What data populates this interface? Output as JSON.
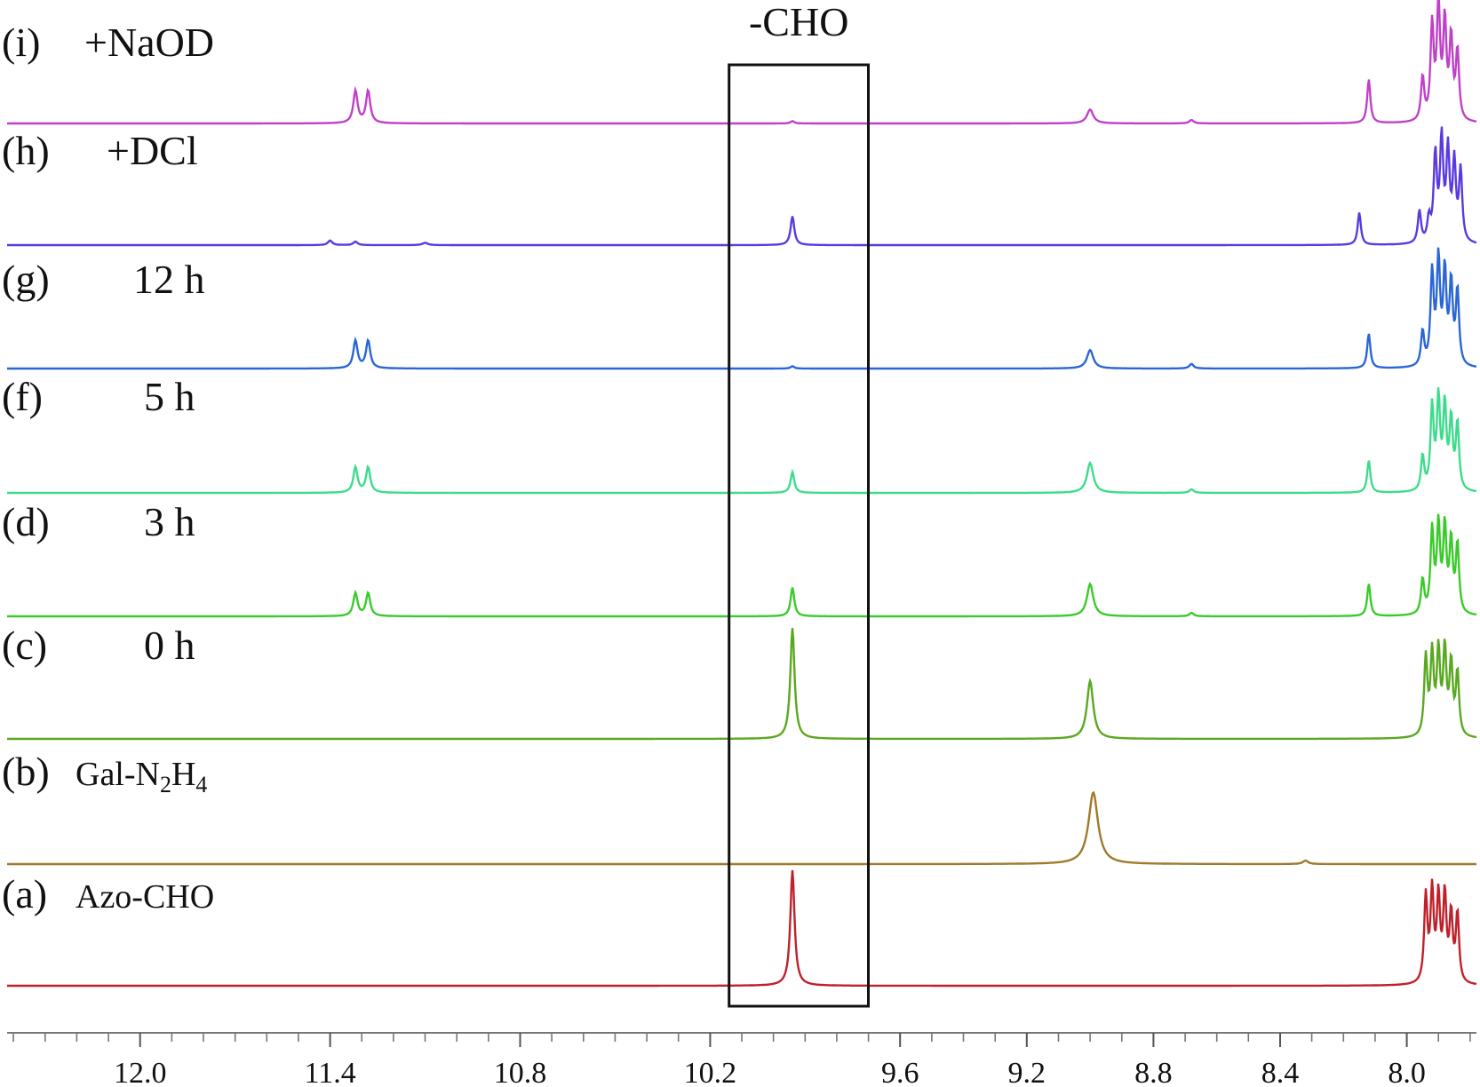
{
  "chart_data": {
    "type": "line",
    "title": "",
    "xlabel": "",
    "ylabel": "",
    "x_axis": {
      "min": 7.78,
      "max": 12.42,
      "reversed": true,
      "ticks": [
        12.0,
        11.4,
        10.8,
        10.2,
        9.6,
        9.2,
        8.8,
        8.4,
        8.0
      ],
      "tick_labels": [
        "12.0",
        "11.4",
        "10.8",
        "10.2",
        "9.6",
        "9.2",
        "8.8",
        "8.4",
        "8.0"
      ]
    },
    "highlight_box": {
      "label": "-CHO",
      "x_from": 10.14,
      "x_to": 9.7
    },
    "series": [
      {
        "id": "a",
        "letter": "(a)",
        "label": "Azo-CHO",
        "color": "#c0202a",
        "peaks": [
          {
            "ppm": 9.94,
            "height": 1.0,
            "width": 0.008
          },
          {
            "ppm": 7.94,
            "height": 0.75,
            "width": 0.006
          },
          {
            "ppm": 7.92,
            "height": 0.78,
            "width": 0.006
          },
          {
            "ppm": 7.9,
            "height": 0.73,
            "width": 0.006
          },
          {
            "ppm": 7.88,
            "height": 0.75,
            "width": 0.006
          },
          {
            "ppm": 7.86,
            "height": 0.58,
            "width": 0.006
          },
          {
            "ppm": 7.84,
            "height": 0.6,
            "width": 0.006
          }
        ]
      },
      {
        "id": "b",
        "letter": "(b)",
        "label": "Gal-N",
        "label_sub1": "2",
        "label_mid": "H",
        "label_sub2": "4",
        "color": "#a07a2a",
        "peaks": [
          {
            "ppm": 8.99,
            "height": 0.62,
            "width": 0.018
          },
          {
            "ppm": 8.32,
            "height": 0.03,
            "width": 0.01
          }
        ]
      },
      {
        "id": "c",
        "letter": "(c)",
        "label": "0 h",
        "color": "#5aa820",
        "peaks": [
          {
            "ppm": 9.94,
            "height": 0.96,
            "width": 0.008
          },
          {
            "ppm": 9.0,
            "height": 0.5,
            "width": 0.012
          },
          {
            "ppm": 7.94,
            "height": 0.68,
            "width": 0.006
          },
          {
            "ppm": 7.92,
            "height": 0.7,
            "width": 0.006
          },
          {
            "ppm": 7.9,
            "height": 0.72,
            "width": 0.006
          },
          {
            "ppm": 7.88,
            "height": 0.74,
            "width": 0.006
          },
          {
            "ppm": 7.86,
            "height": 0.62,
            "width": 0.006
          },
          {
            "ppm": 7.84,
            "height": 0.55,
            "width": 0.006
          }
        ]
      },
      {
        "id": "d",
        "letter": "(d)",
        "label": "3 h",
        "color": "#3acb2a",
        "peaks": [
          {
            "ppm": 11.32,
            "height": 0.2,
            "width": 0.008
          },
          {
            "ppm": 11.28,
            "height": 0.2,
            "width": 0.008
          },
          {
            "ppm": 9.94,
            "height": 0.25,
            "width": 0.007
          },
          {
            "ppm": 9.0,
            "height": 0.28,
            "width": 0.012
          },
          {
            "ppm": 8.68,
            "height": 0.03,
            "width": 0.008
          },
          {
            "ppm": 8.12,
            "height": 0.28,
            "width": 0.006
          },
          {
            "ppm": 7.95,
            "height": 0.3,
            "width": 0.006
          },
          {
            "ppm": 7.92,
            "height": 0.72,
            "width": 0.006
          },
          {
            "ppm": 7.9,
            "height": 0.75,
            "width": 0.006
          },
          {
            "ppm": 7.88,
            "height": 0.74,
            "width": 0.006
          },
          {
            "ppm": 7.86,
            "height": 0.62,
            "width": 0.006
          },
          {
            "ppm": 7.84,
            "height": 0.6,
            "width": 0.006
          }
        ]
      },
      {
        "id": "f",
        "letter": "(f)",
        "label": "5 h",
        "color": "#3ddc8c",
        "peaks": [
          {
            "ppm": 11.32,
            "height": 0.22,
            "width": 0.008
          },
          {
            "ppm": 11.28,
            "height": 0.22,
            "width": 0.008
          },
          {
            "ppm": 9.94,
            "height": 0.18,
            "width": 0.007
          },
          {
            "ppm": 9.0,
            "height": 0.26,
            "width": 0.012
          },
          {
            "ppm": 8.68,
            "height": 0.03,
            "width": 0.008
          },
          {
            "ppm": 8.12,
            "height": 0.28,
            "width": 0.006
          },
          {
            "ppm": 7.95,
            "height": 0.3,
            "width": 0.006
          },
          {
            "ppm": 7.92,
            "height": 0.72,
            "width": 0.006
          },
          {
            "ppm": 7.9,
            "height": 0.78,
            "width": 0.006
          },
          {
            "ppm": 7.88,
            "height": 0.72,
            "width": 0.006
          },
          {
            "ppm": 7.86,
            "height": 0.6,
            "width": 0.006
          },
          {
            "ppm": 7.84,
            "height": 0.58,
            "width": 0.006
          }
        ]
      },
      {
        "id": "g",
        "letter": "(g)",
        "label": "12 h",
        "color": "#2a66d6",
        "peaks": [
          {
            "ppm": 11.32,
            "height": 0.24,
            "width": 0.008
          },
          {
            "ppm": 11.28,
            "height": 0.24,
            "width": 0.008
          },
          {
            "ppm": 9.94,
            "height": 0.02,
            "width": 0.007
          },
          {
            "ppm": 9.0,
            "height": 0.16,
            "width": 0.012
          },
          {
            "ppm": 8.68,
            "height": 0.04,
            "width": 0.008
          },
          {
            "ppm": 8.12,
            "height": 0.3,
            "width": 0.006
          },
          {
            "ppm": 7.95,
            "height": 0.3,
            "width": 0.006
          },
          {
            "ppm": 7.92,
            "height": 0.8,
            "width": 0.006
          },
          {
            "ppm": 7.9,
            "height": 0.9,
            "width": 0.006
          },
          {
            "ppm": 7.88,
            "height": 0.8,
            "width": 0.006
          },
          {
            "ppm": 7.86,
            "height": 0.7,
            "width": 0.006
          },
          {
            "ppm": 7.84,
            "height": 0.65,
            "width": 0.006
          }
        ]
      },
      {
        "id": "h",
        "letter": "(h)",
        "label": "+DCl",
        "color": "#5a3ae0",
        "peaks": [
          {
            "ppm": 11.4,
            "height": 0.04,
            "width": 0.008
          },
          {
            "ppm": 11.32,
            "height": 0.03,
            "width": 0.008
          },
          {
            "ppm": 11.1,
            "height": 0.02,
            "width": 0.01
          },
          {
            "ppm": 9.94,
            "height": 0.25,
            "width": 0.007
          },
          {
            "ppm": 8.15,
            "height": 0.28,
            "width": 0.006
          },
          {
            "ppm": 7.96,
            "height": 0.28,
            "width": 0.006
          },
          {
            "ppm": 7.93,
            "height": 0.2,
            "width": 0.006
          },
          {
            "ppm": 7.91,
            "height": 0.75,
            "width": 0.006
          },
          {
            "ppm": 7.89,
            "height": 0.88,
            "width": 0.006
          },
          {
            "ppm": 7.87,
            "height": 0.78,
            "width": 0.006
          },
          {
            "ppm": 7.85,
            "height": 0.68,
            "width": 0.006
          },
          {
            "ppm": 7.83,
            "height": 0.62,
            "width": 0.006
          }
        ]
      },
      {
        "id": "i",
        "letter": "(i)",
        "label": "+NaOD",
        "color": "#c040c8",
        "peaks": [
          {
            "ppm": 11.32,
            "height": 0.28,
            "width": 0.008
          },
          {
            "ppm": 11.28,
            "height": 0.28,
            "width": 0.008
          },
          {
            "ppm": 9.94,
            "height": 0.02,
            "width": 0.007
          },
          {
            "ppm": 9.0,
            "height": 0.12,
            "width": 0.012
          },
          {
            "ppm": 8.68,
            "height": 0.03,
            "width": 0.008
          },
          {
            "ppm": 8.12,
            "height": 0.38,
            "width": 0.006
          },
          {
            "ppm": 7.95,
            "height": 0.38,
            "width": 0.006
          },
          {
            "ppm": 7.92,
            "height": 0.82,
            "width": 0.006
          },
          {
            "ppm": 7.9,
            "height": 0.98,
            "width": 0.006
          },
          {
            "ppm": 7.88,
            "height": 0.84,
            "width": 0.006
          },
          {
            "ppm": 7.86,
            "height": 0.7,
            "width": 0.006
          },
          {
            "ppm": 7.84,
            "height": 0.6,
            "width": 0.006
          }
        ]
      }
    ]
  }
}
